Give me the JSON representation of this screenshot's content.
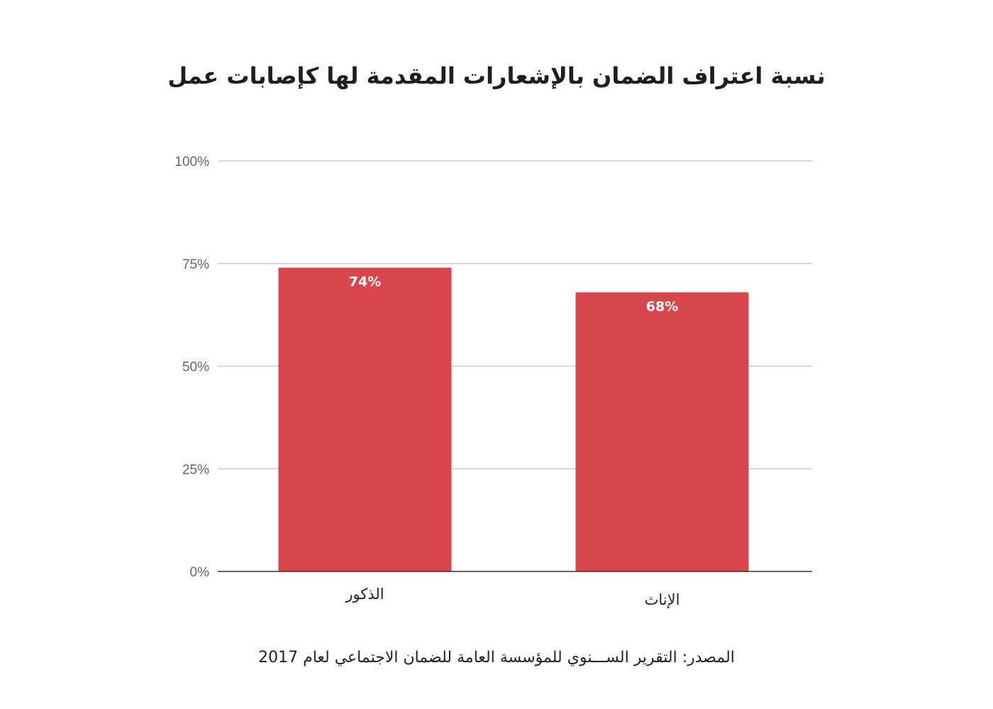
{
  "chart_data": {
    "type": "bar",
    "title": "نسبة اعتراف الضمان بالإشعارات المقدمة لها كإصابات عمل",
    "categories": [
      "الذكور",
      "الإناث"
    ],
    "values": [
      74,
      68
    ],
    "data_labels": [
      "74%",
      "68%"
    ],
    "ylim": [
      0,
      100
    ],
    "yticks": [
      0,
      25,
      50,
      75,
      100
    ],
    "ytick_labels": [
      "0%",
      "25%",
      "50%",
      "75%",
      "100%"
    ],
    "grid": true,
    "bar_color": "#d9474d",
    "xlabel": "",
    "ylabel": ""
  },
  "source": "المصدر: التقرير الســـنوي للمؤسسة العامة للضمان الاجتماعي لعام 2017"
}
